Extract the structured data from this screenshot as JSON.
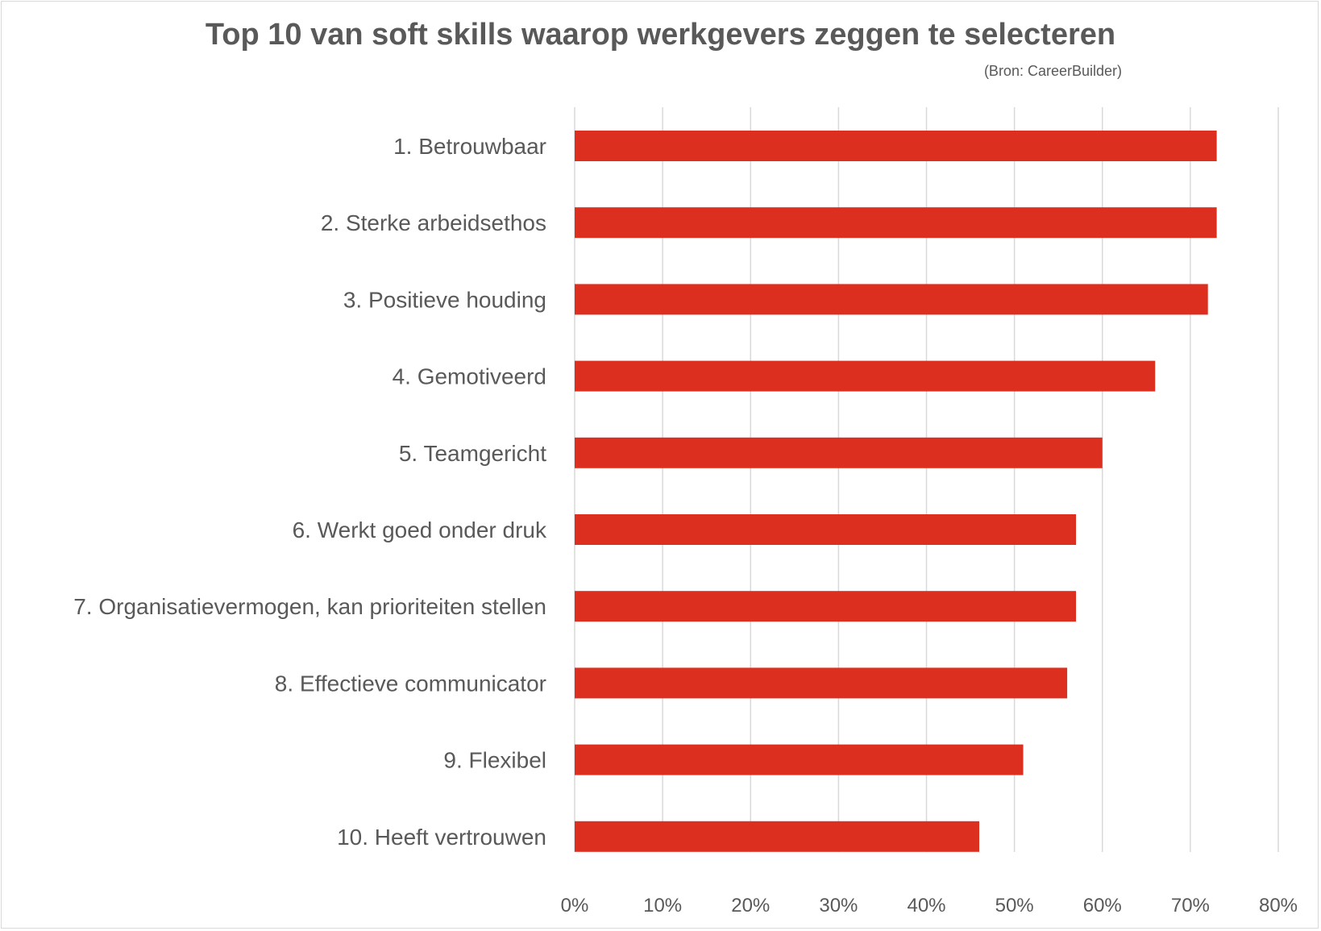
{
  "chart_data": {
    "type": "bar",
    "orientation": "horizontal",
    "title": "Top 10 van soft skills waarop werkgevers zeggen te selecteren",
    "subtitle": "(Bron: CareerBuilder)",
    "categories": [
      "1. Betrouwbaar",
      "2. Sterke arbeidsethos",
      "3. Positieve houding",
      "4. Gemotiveerd",
      "5. Teamgericht",
      "6. Werkt goed onder druk",
      "7. Organisatievermogen, kan prioriteiten stellen",
      "8. Effectieve communicator",
      "9. Flexibel",
      "10. Heeft vertrouwen"
    ],
    "values": [
      0.73,
      0.73,
      0.72,
      0.66,
      0.6,
      0.57,
      0.57,
      0.56,
      0.51,
      0.46
    ],
    "xlim": [
      0,
      0.8
    ],
    "x_ticks": [
      "0%",
      "10%",
      "20%",
      "30%",
      "40%",
      "50%",
      "60%",
      "70%",
      "80%"
    ],
    "grid": true,
    "bar_color": "#dc2f1f",
    "grid_color": "#d9d9d9",
    "text_color": "#595959"
  }
}
